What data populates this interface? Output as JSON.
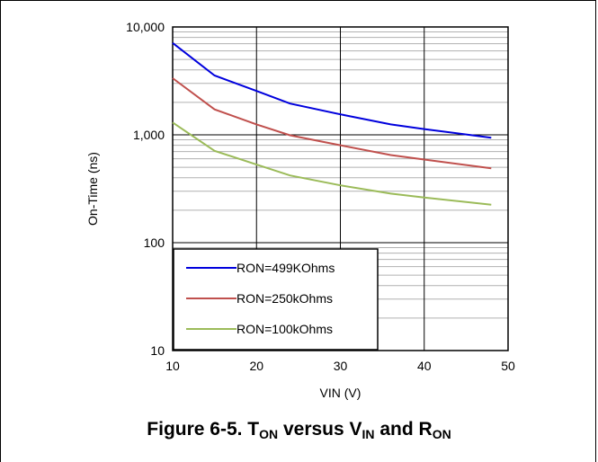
{
  "chart_data": {
    "type": "line",
    "xlabel": "VIN (V)",
    "ylabel": "On-Time (ns)",
    "xlim": [
      10,
      50
    ],
    "ylim": [
      10,
      10000
    ],
    "yscale": "log",
    "grid": true,
    "x_ticks": [
      "10",
      "20",
      "30",
      "40",
      "50"
    ],
    "y_ticks": [
      "10",
      "100",
      "1,000",
      "10,000"
    ],
    "legend_position": "bottom-left",
    "series": [
      {
        "name": "RON=499KOhms",
        "color": "#0000dd",
        "x": [
          10,
          15,
          20,
          24,
          30,
          36,
          40,
          48
        ],
        "y": [
          7100,
          3550,
          2550,
          1950,
          1550,
          1250,
          1130,
          940
        ]
      },
      {
        "name": "RON=250kOhms",
        "color": "#c0504d",
        "x": [
          10,
          15,
          20,
          24,
          30,
          36,
          40,
          48
        ],
        "y": [
          3350,
          1720,
          1250,
          990,
          800,
          650,
          590,
          490
        ]
      },
      {
        "name": "RON=100kOhms",
        "color": "#9bbb59",
        "x": [
          10,
          15,
          20,
          24,
          30,
          36,
          40,
          48
        ],
        "y": [
          1300,
          710,
          530,
          420,
          340,
          285,
          262,
          225
        ]
      }
    ]
  },
  "caption": {
    "prefix": "Figure 6-5. T",
    "sub1": "ON",
    "mid1": " versus V",
    "sub2": "IN",
    "mid2": " and R",
    "sub3": "ON"
  }
}
